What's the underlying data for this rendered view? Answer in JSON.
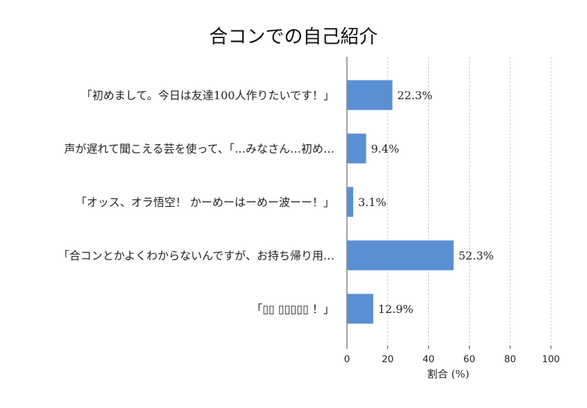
{
  "chart_data": {
    "type": "bar",
    "orientation": "horizontal",
    "title": "合コンでの自己紹介",
    "xlabel": "割合 (%)",
    "ylabel": "",
    "xlim": [
      0,
      100
    ],
    "xticks": [
      0,
      20,
      40,
      60,
      80,
      100
    ],
    "grid": true,
    "color": "#5b8fd3",
    "categories": [
      "「初めまして。今日は友達100人作りたいです！」",
      "声が遅れて聞こえる芸を使って、「…みなさん…初め…",
      "「オッス、オラ悟空！ かーめーはーめー波ーー！」",
      "「合コンとかよくわからないんですが、お持ち帰り用…",
      "「▯▯ ▯▯▯▯▯ ！」"
    ],
    "values": [
      22.3,
      9.4,
      3.1,
      52.3,
      12.9
    ],
    "value_labels": [
      "22.3%",
      "9.4%",
      "3.1%",
      "52.3%",
      "12.9%"
    ]
  }
}
